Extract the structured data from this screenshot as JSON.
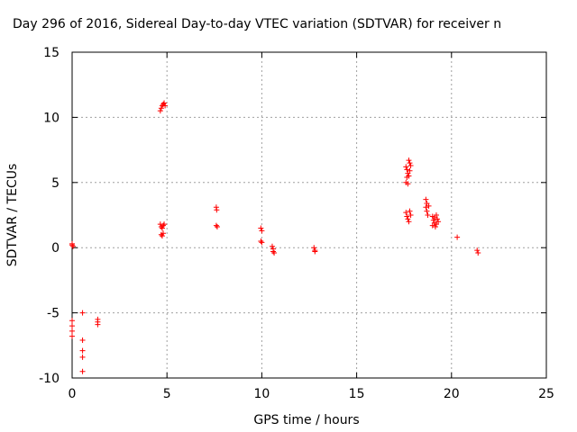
{
  "chart_data": {
    "type": "scatter",
    "title": "Day 296 of 2016, Sidereal Day-to-day VTEC variation (SDTVAR) for receiver n",
    "xlabel": "GPS time / hours",
    "ylabel": "SDTVAR / TECUs",
    "xlim": [
      0,
      25
    ],
    "ylim": [
      -10,
      15
    ],
    "xticks": [
      "0",
      "5",
      "10",
      "15",
      "20",
      "25"
    ],
    "yticks": [
      "-10",
      "-5",
      "0",
      "5",
      "10",
      "15"
    ],
    "grid": true,
    "marker": "+",
    "color": "#ff0000",
    "points": [
      [
        0.0,
        0.3
      ],
      [
        0.0,
        0.2
      ],
      [
        0.05,
        0.1
      ],
      [
        0.0,
        -5.6
      ],
      [
        0.0,
        -6.0
      ],
      [
        0.0,
        -6.4
      ],
      [
        0.0,
        -6.8
      ],
      [
        0.55,
        -5.0
      ],
      [
        0.55,
        -7.1
      ],
      [
        0.55,
        -7.9
      ],
      [
        0.55,
        -8.4
      ],
      [
        0.55,
        -9.5
      ],
      [
        1.35,
        -5.5
      ],
      [
        1.35,
        -5.7
      ],
      [
        1.35,
        -5.9
      ],
      [
        4.65,
        10.5
      ],
      [
        4.7,
        10.7
      ],
      [
        4.75,
        10.9
      ],
      [
        4.8,
        11.0
      ],
      [
        4.85,
        11.1
      ],
      [
        4.9,
        10.9
      ],
      [
        4.65,
        1.8
      ],
      [
        4.7,
        1.6
      ],
      [
        4.75,
        1.5
      ],
      [
        4.8,
        1.7
      ],
      [
        4.85,
        1.8
      ],
      [
        4.7,
        1.0
      ],
      [
        4.75,
        0.9
      ],
      [
        4.8,
        1.1
      ],
      [
        7.6,
        3.1
      ],
      [
        7.62,
        2.9
      ],
      [
        7.6,
        1.7
      ],
      [
        7.65,
        1.6
      ],
      [
        9.95,
        1.5
      ],
      [
        10.0,
        1.3
      ],
      [
        9.95,
        0.5
      ],
      [
        10.0,
        0.4
      ],
      [
        10.55,
        0.1
      ],
      [
        10.6,
        -0.1
      ],
      [
        10.6,
        -0.3
      ],
      [
        10.65,
        -0.4
      ],
      [
        12.75,
        0.0
      ],
      [
        12.8,
        -0.2
      ],
      [
        12.8,
        -0.3
      ],
      [
        17.6,
        6.2
      ],
      [
        17.65,
        6.0
      ],
      [
        17.7,
        5.7
      ],
      [
        17.65,
        5.4
      ],
      [
        17.6,
        5.0
      ],
      [
        17.7,
        4.9
      ],
      [
        17.75,
        6.7
      ],
      [
        17.8,
        6.5
      ],
      [
        17.85,
        6.3
      ],
      [
        17.8,
        5.9
      ],
      [
        17.75,
        5.5
      ],
      [
        17.6,
        2.7
      ],
      [
        17.65,
        2.4
      ],
      [
        17.7,
        2.2
      ],
      [
        17.75,
        2.0
      ],
      [
        17.8,
        2.8
      ],
      [
        17.85,
        2.5
      ],
      [
        18.65,
        3.7
      ],
      [
        18.7,
        3.4
      ],
      [
        18.65,
        3.1
      ],
      [
        18.7,
        2.8
      ],
      [
        18.75,
        2.5
      ],
      [
        18.8,
        3.2
      ],
      [
        19.0,
        2.4
      ],
      [
        19.05,
        2.1
      ],
      [
        19.1,
        1.9
      ],
      [
        19.0,
        1.7
      ],
      [
        19.15,
        1.6
      ],
      [
        19.2,
        2.5
      ],
      [
        19.25,
        2.2
      ],
      [
        19.3,
        2.0
      ],
      [
        19.2,
        1.8
      ],
      [
        19.1,
        2.3
      ],
      [
        20.3,
        0.8
      ],
      [
        21.35,
        -0.2
      ],
      [
        21.4,
        -0.4
      ]
    ]
  }
}
